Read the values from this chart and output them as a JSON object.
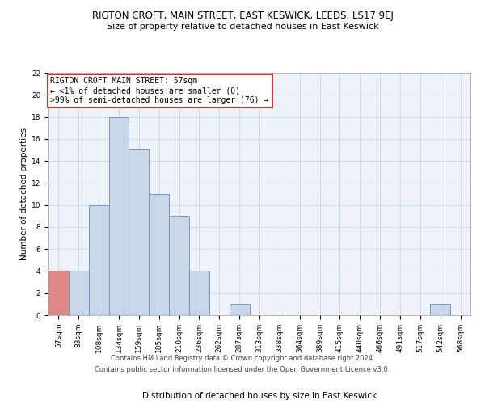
{
  "title": "RIGTON CROFT, MAIN STREET, EAST KESWICK, LEEDS, LS17 9EJ",
  "subtitle": "Size of property relative to detached houses in East Keswick",
  "xlabel": "Distribution of detached houses by size in East Keswick",
  "ylabel": "Number of detached properties",
  "categories": [
    "57sqm",
    "83sqm",
    "108sqm",
    "134sqm",
    "159sqm",
    "185sqm",
    "210sqm",
    "236sqm",
    "262sqm",
    "287sqm",
    "313sqm",
    "338sqm",
    "364sqm",
    "389sqm",
    "415sqm",
    "440sqm",
    "466sqm",
    "491sqm",
    "517sqm",
    "542sqm",
    "568sqm"
  ],
  "values": [
    4,
    4,
    10,
    18,
    15,
    11,
    9,
    4,
    0,
    1,
    0,
    0,
    0,
    0,
    0,
    0,
    0,
    0,
    0,
    1,
    0
  ],
  "bar_color": "#c8d8e8",
  "bar_edge_color": "#7799bb",
  "highlight_index": 0,
  "highlight_color": "#dd8888",
  "highlight_edge_color": "#bb3333",
  "annotation_text": "RIGTON CROFT MAIN STREET: 57sqm\n← <1% of detached houses are smaller (0)\n>99% of semi-detached houses are larger (76) →",
  "annotation_box_color": "#ffffff",
  "annotation_box_edge_color": "#cc3333",
  "ylim": [
    0,
    22
  ],
  "yticks": [
    0,
    2,
    4,
    6,
    8,
    10,
    12,
    14,
    16,
    18,
    20,
    22
  ],
  "grid_color": "#c8d0e0",
  "background_color": "#eef2fa",
  "footer_line1": "Contains HM Land Registry data © Crown copyright and database right 2024.",
  "footer_line2": "Contains public sector information licensed under the Open Government Licence v3.0.",
  "title_fontsize": 8.5,
  "subtitle_fontsize": 8.0,
  "annotation_fontsize": 7.0,
  "axis_label_fontsize": 7.5,
  "tick_fontsize": 6.5,
  "footer_fontsize": 6.0
}
